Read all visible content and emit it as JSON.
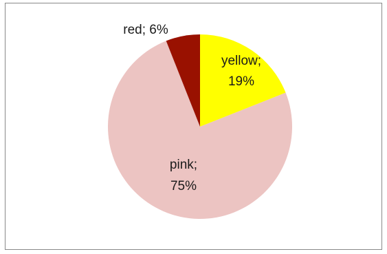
{
  "chart_data": {
    "type": "pie",
    "slices": [
      {
        "category": "yellow",
        "percent": 19,
        "label_line1": "yellow;",
        "label_line2": "19%",
        "color": "#ffff00"
      },
      {
        "category": "pink",
        "percent": 75,
        "label_line1": "pink;",
        "label_line2": "75%",
        "color": "#ecc4c2"
      },
      {
        "category": "red",
        "percent": 6,
        "label_line1": "red; 6%",
        "label_line2": "",
        "color": "#991100"
      }
    ],
    "start_angle_deg": 0,
    "direction": "clockwise",
    "legend": "none"
  }
}
